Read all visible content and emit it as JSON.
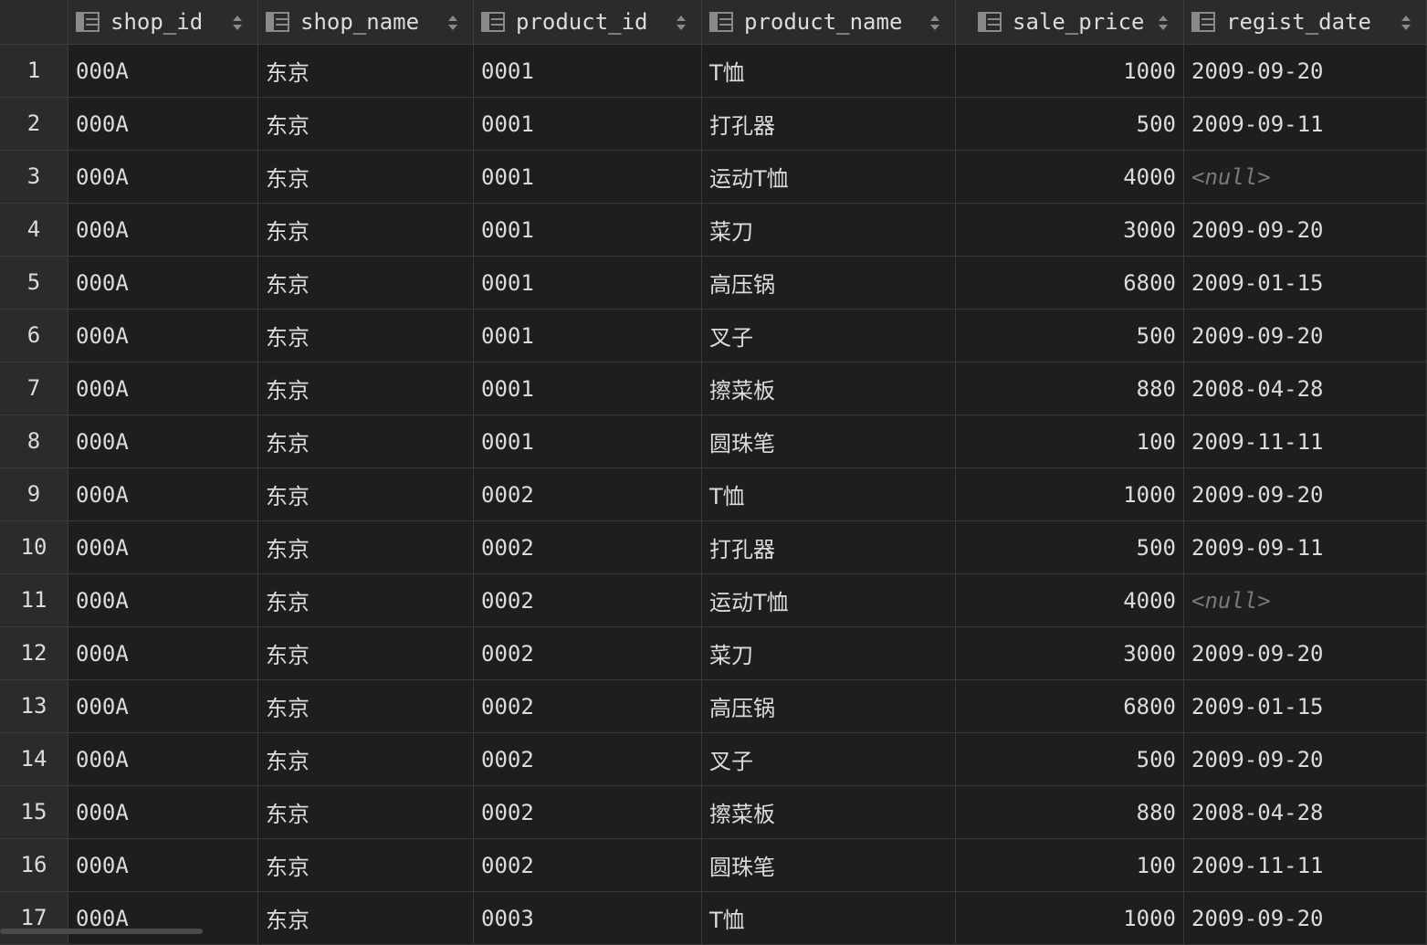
{
  "columns": [
    {
      "key": "shop_id",
      "label": "shop_id"
    },
    {
      "key": "shop_name",
      "label": "shop_name"
    },
    {
      "key": "product_id",
      "label": "product_id"
    },
    {
      "key": "product_name",
      "label": "product_name"
    },
    {
      "key": "sale_price",
      "label": "sale_price"
    },
    {
      "key": "regist_date",
      "label": "regist_date"
    }
  ],
  "rows": [
    {
      "n": "1",
      "shop_id": "000A",
      "shop_name": "东京",
      "product_id": "0001",
      "product_name": "T恤",
      "sale_price": "1000",
      "regist_date": "2009-09-20"
    },
    {
      "n": "2",
      "shop_id": "000A",
      "shop_name": "东京",
      "product_id": "0001",
      "product_name": "打孔器",
      "sale_price": "500",
      "regist_date": "2009-09-11"
    },
    {
      "n": "3",
      "shop_id": "000A",
      "shop_name": "东京",
      "product_id": "0001",
      "product_name": "运动T恤",
      "sale_price": "4000",
      "regist_date": "<null>"
    },
    {
      "n": "4",
      "shop_id": "000A",
      "shop_name": "东京",
      "product_id": "0001",
      "product_name": "菜刀",
      "sale_price": "3000",
      "regist_date": "2009-09-20"
    },
    {
      "n": "5",
      "shop_id": "000A",
      "shop_name": "东京",
      "product_id": "0001",
      "product_name": "高压锅",
      "sale_price": "6800",
      "regist_date": "2009-01-15"
    },
    {
      "n": "6",
      "shop_id": "000A",
      "shop_name": "东京",
      "product_id": "0001",
      "product_name": "叉子",
      "sale_price": "500",
      "regist_date": "2009-09-20"
    },
    {
      "n": "7",
      "shop_id": "000A",
      "shop_name": "东京",
      "product_id": "0001",
      "product_name": "擦菜板",
      "sale_price": "880",
      "regist_date": "2008-04-28"
    },
    {
      "n": "8",
      "shop_id": "000A",
      "shop_name": "东京",
      "product_id": "0001",
      "product_name": "圆珠笔",
      "sale_price": "100",
      "regist_date": "2009-11-11"
    },
    {
      "n": "9",
      "shop_id": "000A",
      "shop_name": "东京",
      "product_id": "0002",
      "product_name": "T恤",
      "sale_price": "1000",
      "regist_date": "2009-09-20"
    },
    {
      "n": "10",
      "shop_id": "000A",
      "shop_name": "东京",
      "product_id": "0002",
      "product_name": "打孔器",
      "sale_price": "500",
      "regist_date": "2009-09-11"
    },
    {
      "n": "11",
      "shop_id": "000A",
      "shop_name": "东京",
      "product_id": "0002",
      "product_name": "运动T恤",
      "sale_price": "4000",
      "regist_date": "<null>"
    },
    {
      "n": "12",
      "shop_id": "000A",
      "shop_name": "东京",
      "product_id": "0002",
      "product_name": "菜刀",
      "sale_price": "3000",
      "regist_date": "2009-09-20"
    },
    {
      "n": "13",
      "shop_id": "000A",
      "shop_name": "东京",
      "product_id": "0002",
      "product_name": "高压锅",
      "sale_price": "6800",
      "regist_date": "2009-01-15"
    },
    {
      "n": "14",
      "shop_id": "000A",
      "shop_name": "东京",
      "product_id": "0002",
      "product_name": "叉子",
      "sale_price": "500",
      "regist_date": "2009-09-20"
    },
    {
      "n": "15",
      "shop_id": "000A",
      "shop_name": "东京",
      "product_id": "0002",
      "product_name": "擦菜板",
      "sale_price": "880",
      "regist_date": "2008-04-28"
    },
    {
      "n": "16",
      "shop_id": "000A",
      "shop_name": "东京",
      "product_id": "0002",
      "product_name": "圆珠笔",
      "sale_price": "100",
      "regist_date": "2009-11-11"
    },
    {
      "n": "17",
      "shop_id": "000A",
      "shop_name": "东京",
      "product_id": "0003",
      "product_name": "T恤",
      "sale_price": "1000",
      "regist_date": "2009-09-20"
    }
  ],
  "icons": {
    "column_icon": "table-column-icon",
    "sort_icon": "sort-arrows-icon"
  }
}
